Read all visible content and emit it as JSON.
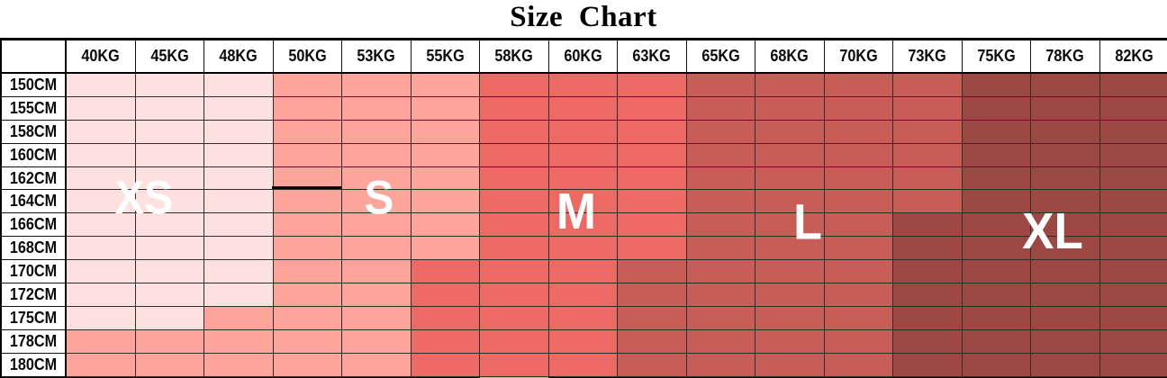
{
  "title": "Size Chart",
  "size_labels": [
    {
      "text": "XS"
    },
    {
      "text": "S"
    },
    {
      "text": "M"
    },
    {
      "text": "L"
    },
    {
      "text": "XL"
    }
  ],
  "chart_data": {
    "type": "heatmap",
    "title": "Size Chart",
    "x_unit": "weight",
    "y_unit": "height",
    "x_categories": [
      "40KG",
      "45KG",
      "48KG",
      "50KG",
      "53KG",
      "55KG",
      "58KG",
      "60KG",
      "63KG",
      "65KG",
      "68KG",
      "70KG",
      "73KG",
      "75KG",
      "78KG",
      "82KG"
    ],
    "y_categories": [
      "150CM",
      "155CM",
      "158CM",
      "160CM",
      "162CM",
      "164CM",
      "166CM",
      "168CM",
      "170CM",
      "172CM",
      "175CM",
      "178CM",
      "180CM"
    ],
    "legend": [
      "XS",
      "S",
      "M",
      "L",
      "XL"
    ],
    "palette": {
      "XS": "#fde1e1",
      "S": "#fda49b",
      "M": "#ec6a63",
      "L": "#c75d56",
      "XL": "#9e4843"
    },
    "cell_sizes": [
      [
        "XS",
        "XS",
        "XS",
        "S",
        "S",
        "S",
        "M",
        "M",
        "M",
        "L",
        "L",
        "L",
        "L",
        "XL",
        "XL",
        "XL"
      ],
      [
        "XS",
        "XS",
        "XS",
        "S",
        "S",
        "S",
        "M",
        "M",
        "M",
        "L",
        "L",
        "L",
        "L",
        "XL",
        "XL",
        "XL"
      ],
      [
        "XS",
        "XS",
        "XS",
        "S",
        "S",
        "S",
        "M",
        "M",
        "M",
        "L",
        "L",
        "L",
        "L",
        "XL",
        "XL",
        "XL"
      ],
      [
        "XS",
        "XS",
        "XS",
        "S",
        "S",
        "S",
        "M",
        "M",
        "M",
        "L",
        "L",
        "L",
        "L",
        "XL",
        "XL",
        "XL"
      ],
      [
        "XS",
        "XS",
        "XS",
        "S",
        "S",
        "S",
        "M",
        "M",
        "M",
        "L",
        "L",
        "L",
        "L",
        "XL",
        "XL",
        "XL"
      ],
      [
        "XS",
        "XS",
        "XS",
        "S",
        "S",
        "S",
        "M",
        "M",
        "M",
        "L",
        "L",
        "L",
        "L",
        "XL",
        "XL",
        "XL"
      ],
      [
        "XS",
        "XS",
        "XS",
        "S",
        "S",
        "S",
        "M",
        "M",
        "M",
        "L",
        "L",
        "L",
        "XL",
        "XL",
        "XL",
        "XL"
      ],
      [
        "XS",
        "XS",
        "XS",
        "S",
        "S",
        "S",
        "M",
        "M",
        "M",
        "L",
        "L",
        "L",
        "XL",
        "XL",
        "XL",
        "XL"
      ],
      [
        "XS",
        "XS",
        "XS",
        "S",
        "S",
        "M",
        "M",
        "M",
        "L",
        "L",
        "L",
        "L",
        "XL",
        "XL",
        "XL",
        "XL"
      ],
      [
        "XS",
        "XS",
        "XS",
        "S",
        "S",
        "M",
        "M",
        "M",
        "L",
        "L",
        "L",
        "L",
        "XL",
        "XL",
        "XL",
        "XL"
      ],
      [
        "XS",
        "XS",
        "S",
        "S",
        "S",
        "M",
        "M",
        "M",
        "L",
        "L",
        "L",
        "L",
        "XL",
        "XL",
        "XL",
        "XL"
      ],
      [
        "S",
        "S",
        "S",
        "S",
        "S",
        "M",
        "M",
        "M",
        "L",
        "L",
        "L",
        "L",
        "XL",
        "XL",
        "XL",
        "XL"
      ],
      [
        "S",
        "S",
        "S",
        "S",
        "S",
        "M",
        "M",
        "M",
        "L",
        "L",
        "L",
        "L",
        "XL",
        "XL",
        "XL",
        "XL"
      ]
    ],
    "partial_next_row_sizes": [
      "S",
      "S",
      "S",
      "S",
      "S",
      "S",
      "S",
      "M",
      "L",
      "L",
      "L",
      "L",
      "XL",
      "XL",
      "XL",
      "XL"
    ]
  }
}
